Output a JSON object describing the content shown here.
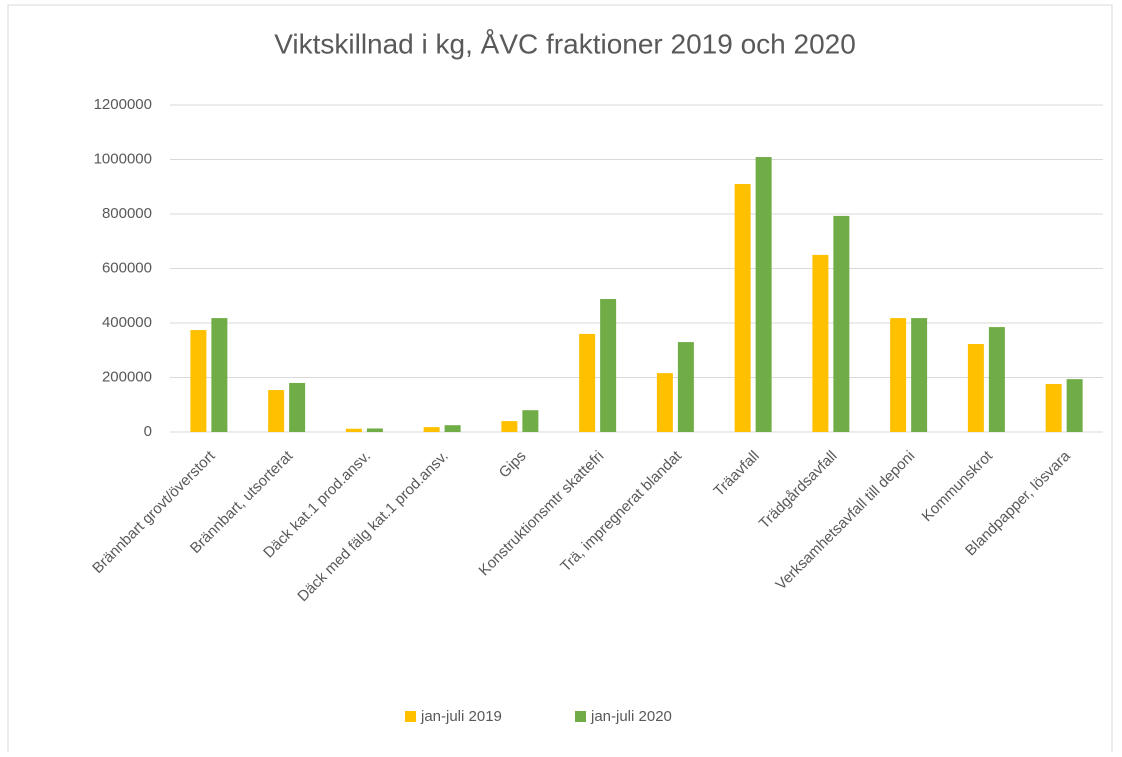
{
  "chart_data": {
    "type": "bar",
    "title": "Viktskillnad i kg, ÅVC fraktioner 2019 och 2020",
    "categories": [
      "Brännbart grovt/överstort",
      "Brännbart, utsorterat",
      "Däck kat.1 prod.ansv.",
      "Däck med fälg kat.1 prod.ansv.",
      "Gips",
      "Konstruktionsmtr skattefri",
      "Trä, impregnerat blandat",
      "Träavfall",
      "Trädgårdsavfall",
      "Verksamhetsavfall till deponi",
      "Kommunskrot",
      "Blandpapper, lösvara"
    ],
    "series": [
      {
        "name": "jan-juli 2019",
        "color": "#ffc000",
        "values": [
          374000,
          154000,
          12000,
          18000,
          40000,
          360000,
          216000,
          910000,
          650000,
          418000,
          323000,
          176000
        ]
      },
      {
        "name": "jan-juli 2020",
        "color": "#70ad47",
        "values": [
          418000,
          180000,
          13000,
          25000,
          80000,
          488000,
          330000,
          1009000,
          793000,
          418000,
          385000,
          194000
        ]
      }
    ],
    "ylim": [
      0,
      1200000
    ],
    "yticks": [
      0,
      200000,
      400000,
      600000,
      800000,
      1000000,
      1200000
    ],
    "grid": true,
    "legend": "bottom"
  }
}
